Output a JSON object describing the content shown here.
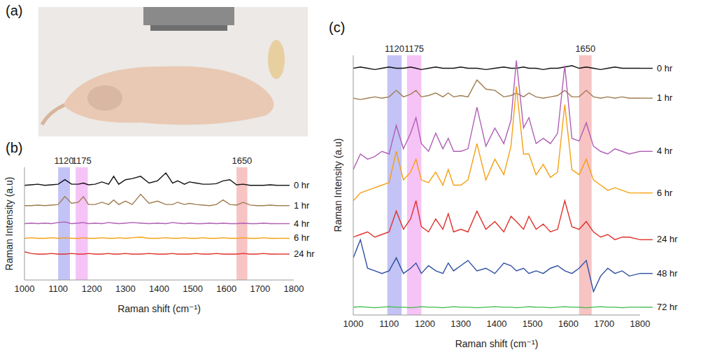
{
  "chart_data": [
    {
      "type": "image",
      "panel": "(a)"
    },
    {
      "type": "line",
      "panel": "(b)",
      "x_label": "Raman shift (cm⁻¹)",
      "y_label": "Raman Intensity (a.u)",
      "tick_labels": "x",
      "x": [
        1000,
        1020,
        1040,
        1060,
        1080,
        1100,
        1120,
        1140,
        1160,
        1175,
        1190,
        1210,
        1230,
        1250,
        1265,
        1280,
        1300,
        1320,
        1345,
        1370,
        1395,
        1420,
        1440,
        1455,
        1475,
        1490,
        1510,
        1530,
        1550,
        1570,
        1590,
        1610,
        1630,
        1650,
        1670,
        1690,
        1710,
        1730,
        1750
      ],
      "xlim": [
        1000,
        1800
      ],
      "xticks": [
        1000,
        1100,
        1200,
        1300,
        1400,
        1500,
        1600,
        1700,
        1800
      ],
      "ylim": [
        0,
        100
      ],
      "bands": [
        {
          "label": "1120",
          "x0": 1100,
          "x1": 1135,
          "color": "#b9b9f3"
        },
        {
          "label": "1175",
          "x0": 1152,
          "x1": 1188,
          "color": "#f5b8f5"
        },
        {
          "label": "1650",
          "x0": 1630,
          "x1": 1662,
          "color": "#f6b8b8"
        }
      ],
      "series": [
        {
          "name": "0 hr",
          "color": "#111111",
          "values": [
            84,
            84.5,
            85,
            84,
            84.5,
            85,
            89,
            85,
            85,
            86,
            84.5,
            85,
            87,
            85,
            92,
            85,
            89,
            90,
            92,
            86,
            88,
            95,
            86,
            88,
            85,
            87,
            86,
            85,
            85,
            85.5,
            88,
            89,
            84.5,
            85,
            84,
            84,
            84,
            84.5,
            84
          ]
        },
        {
          "name": "1 hr",
          "color": "#a07c4f",
          "values": [
            66,
            66,
            66.5,
            66,
            66.5,
            67,
            74,
            68,
            69,
            74,
            67,
            67,
            69,
            67,
            71,
            67,
            70,
            67,
            76,
            68,
            70,
            67,
            67,
            69,
            67,
            68,
            67,
            66.5,
            66,
            67,
            71,
            67,
            66.5,
            69,
            66.5,
            66,
            66,
            66.5,
            66
          ]
        },
        {
          "name": "4 hr",
          "color": "#b05fb5",
          "values": [
            50,
            50.5,
            50,
            50.5,
            50,
            51,
            51.5,
            50,
            50.5,
            51,
            50,
            50.5,
            50,
            51,
            50.5,
            50,
            50.5,
            51,
            50.5,
            50,
            50.5,
            50,
            51,
            50.5,
            50,
            50.5,
            50,
            50,
            50.5,
            50,
            50.5,
            50,
            50,
            50.5,
            50,
            50,
            50.5,
            50,
            50
          ]
        },
        {
          "name": "6 hr",
          "color": "#f5a011",
          "values": [
            37,
            37.5,
            37,
            37,
            37.5,
            37,
            37.5,
            37,
            37,
            37.5,
            37,
            37,
            37.5,
            37,
            37,
            37.5,
            37,
            37.5,
            38,
            37,
            37,
            37.5,
            37,
            37,
            37.5,
            37,
            37,
            37.5,
            37,
            37,
            37.5,
            37,
            37,
            37.5,
            37,
            37,
            37.5,
            37,
            37
          ]
        },
        {
          "name": "24 hr",
          "color": "#e0312a",
          "values": [
            25,
            23.5,
            23,
            23,
            23.5,
            23,
            23,
            23.5,
            23,
            23,
            23.5,
            23,
            23,
            23.5,
            23,
            23,
            23.5,
            23,
            23,
            23.5,
            23,
            23,
            23.5,
            23,
            23,
            23,
            23.5,
            23,
            23,
            23.5,
            23,
            23,
            23,
            23.5,
            23,
            23,
            23.5,
            23,
            23
          ]
        }
      ]
    },
    {
      "type": "line",
      "panel": "(c)",
      "x_label": "Raman shift (cm⁻¹)",
      "y_label": "Raman Intensity (a.u)",
      "tick_labels": "x",
      "x": [
        1000,
        1020,
        1040,
        1060,
        1080,
        1100,
        1120,
        1140,
        1160,
        1175,
        1190,
        1210,
        1230,
        1250,
        1265,
        1280,
        1300,
        1320,
        1345,
        1370,
        1395,
        1420,
        1440,
        1455,
        1475,
        1490,
        1510,
        1530,
        1550,
        1570,
        1590,
        1610,
        1630,
        1650,
        1670,
        1690,
        1710,
        1730,
        1750,
        1770,
        1800
      ],
      "xlim": [
        1000,
        1800
      ],
      "xticks": [
        1000,
        1100,
        1200,
        1300,
        1400,
        1500,
        1600,
        1700,
        1800
      ],
      "ylim": [
        0,
        100
      ],
      "bands": [
        {
          "label": "1120",
          "x0": 1095,
          "x1": 1135,
          "color": "#b9b9f3"
        },
        {
          "label": "1175",
          "x0": 1150,
          "x1": 1190,
          "color": "#f5b8f5"
        },
        {
          "label": "1650",
          "x0": 1630,
          "x1": 1665,
          "color": "#f6b8b8"
        }
      ],
      "series": [
        {
          "name": "0 hr",
          "color": "#111111",
          "values": [
            95,
            95.5,
            95,
            94.5,
            95,
            95.5,
            95,
            95,
            95.5,
            95,
            94.5,
            95,
            95.5,
            95,
            95,
            95,
            95.5,
            95,
            95,
            94.5,
            95,
            95.5,
            95,
            95,
            95.5,
            95,
            95,
            94.5,
            95,
            95,
            95.5,
            96,
            95,
            95.5,
            95,
            94.5,
            95,
            95.5,
            95,
            95,
            95
          ]
        },
        {
          "name": "1 hr",
          "color": "#a07c4f",
          "values": [
            83.5,
            83,
            83.5,
            84,
            83.5,
            84,
            86.5,
            84,
            85,
            86.5,
            84,
            84.5,
            85.5,
            84,
            85.5,
            84,
            84.5,
            84,
            90.5,
            87,
            86.5,
            84,
            84.5,
            85.5,
            84,
            85.5,
            84,
            83.5,
            84,
            84.5,
            86.5,
            84,
            84,
            86.5,
            84,
            83.5,
            84,
            83.5,
            84,
            83.5,
            83.5
          ]
        },
        {
          "name": "4 hr",
          "color": "#b05fb5",
          "values": [
            56,
            62,
            60,
            61,
            63,
            62,
            73,
            64,
            70,
            76,
            66,
            63,
            70,
            64,
            68,
            63,
            63,
            64,
            80,
            65,
            72,
            66,
            75,
            98,
            72,
            76,
            66,
            68,
            66,
            70,
            96,
            68,
            67,
            74,
            65,
            63,
            62,
            64,
            63,
            62,
            63
          ]
        },
        {
          "name": "6 hr",
          "color": "#f5a011",
          "values": [
            44,
            47,
            48,
            49,
            50,
            51,
            63,
            52,
            55,
            60,
            52,
            51,
            55,
            50,
            56,
            50,
            50,
            52,
            66,
            52,
            60,
            54,
            65,
            88,
            62,
            62,
            54,
            58,
            53,
            55,
            81,
            56,
            54,
            60,
            52,
            50,
            48,
            49,
            48,
            47,
            47
          ]
        },
        {
          "name": "24 hr",
          "color": "#e0312a",
          "values": [
            30,
            31,
            32,
            30,
            31,
            32,
            40,
            33,
            37,
            44,
            34,
            32,
            37,
            33,
            39,
            32,
            33,
            32,
            40,
            33,
            36,
            32,
            38,
            36,
            33,
            38,
            33,
            35,
            32,
            33,
            44,
            34,
            33,
            36,
            32,
            30,
            31,
            29,
            30,
            30,
            29
          ]
        },
        {
          "name": "48 hr",
          "color": "#2e4fa0",
          "values": [
            22,
            29,
            18,
            17,
            16,
            17,
            22,
            16,
            18,
            20,
            16,
            19,
            17,
            16,
            20,
            17,
            19,
            21,
            17,
            18,
            16,
            20,
            19,
            17,
            18,
            16,
            17,
            16,
            18,
            19,
            17,
            16,
            18,
            21,
            9,
            15,
            18,
            16,
            17,
            15,
            16
          ]
        },
        {
          "name": "72 hr",
          "color": "#3dbb4a",
          "values": [
            3,
            3.2,
            3,
            2.8,
            3,
            3.2,
            3,
            3,
            2.8,
            3,
            3.2,
            3,
            3,
            2.8,
            3,
            3.2,
            3,
            3,
            2.8,
            3,
            3.2,
            3,
            3,
            2.8,
            3,
            3.2,
            3,
            3,
            2.8,
            3,
            3.2,
            3,
            3,
            2.8,
            3,
            3.2,
            3,
            3,
            2.8,
            3,
            3
          ]
        }
      ]
    }
  ]
}
